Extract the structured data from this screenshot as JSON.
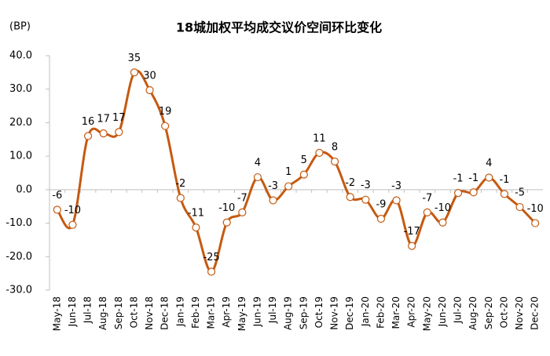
{
  "chart_data": {
    "type": "line",
    "title": "18城加权平均成交议价空间环比变化",
    "y_label": "(BP)",
    "categories": [
      "May-18",
      "Jun-18",
      "Jul-18",
      "Aug-18",
      "Sep-18",
      "Oct-18",
      "Nov-18",
      "Dec-18",
      "Jan-19",
      "Feb-19",
      "Mar-19",
      "Apr-19",
      "May-19",
      "Jun-19",
      "Jul-19",
      "Aug-19",
      "Sep-19",
      "Oct-19",
      "Nov-19",
      "Dec-19",
      "Jan-20",
      "Feb-20",
      "Mar-20",
      "Apr-20",
      "May-20",
      "Jun-20",
      "Jul-20",
      "Aug-20",
      "Sep-20",
      "Oct-20",
      "Nov-20",
      "Dec-20"
    ],
    "values": [
      -6,
      -10.5,
      16,
      16.8,
      17.2,
      35,
      29.7,
      19,
      -2.5,
      -11.3,
      -24.5,
      -9.8,
      -6.8,
      3.7,
      -3.2,
      1,
      4.5,
      11,
      8.4,
      -2.2,
      -3,
      -8.7,
      -3.2,
      -16.8,
      -6.8,
      -9.8,
      -1,
      -0.8,
      3.6,
      -1.3,
      -5.2,
      -10
    ],
    "value_labels": [
      "-6",
      "-10",
      "16",
      "17",
      "17",
      "35",
      "30",
      "19",
      "-2",
      "-11",
      "-25",
      "-10",
      "-7",
      "4",
      "-3",
      "1",
      "5",
      "11",
      "8",
      "-2",
      "-3",
      "-9",
      "-3",
      "-17",
      "-7",
      "-10",
      "-1",
      "-1",
      "4",
      "-1",
      "-5",
      "-10"
    ],
    "color": "#c55a11",
    "ylim": [
      -30,
      40
    ],
    "yticks": [
      {
        "value": -30,
        "label": "-30.0"
      },
      {
        "value": -20,
        "label": "-20.0"
      },
      {
        "value": -10,
        "label": "-10.0"
      },
      {
        "value": 0,
        "label": "0.0"
      },
      {
        "value": 10,
        "label": "10.0"
      },
      {
        "value": 20,
        "label": "20.0"
      },
      {
        "value": 30,
        "label": "30.0"
      },
      {
        "value": 40,
        "label": "40.0"
      }
    ],
    "grid": false
  }
}
